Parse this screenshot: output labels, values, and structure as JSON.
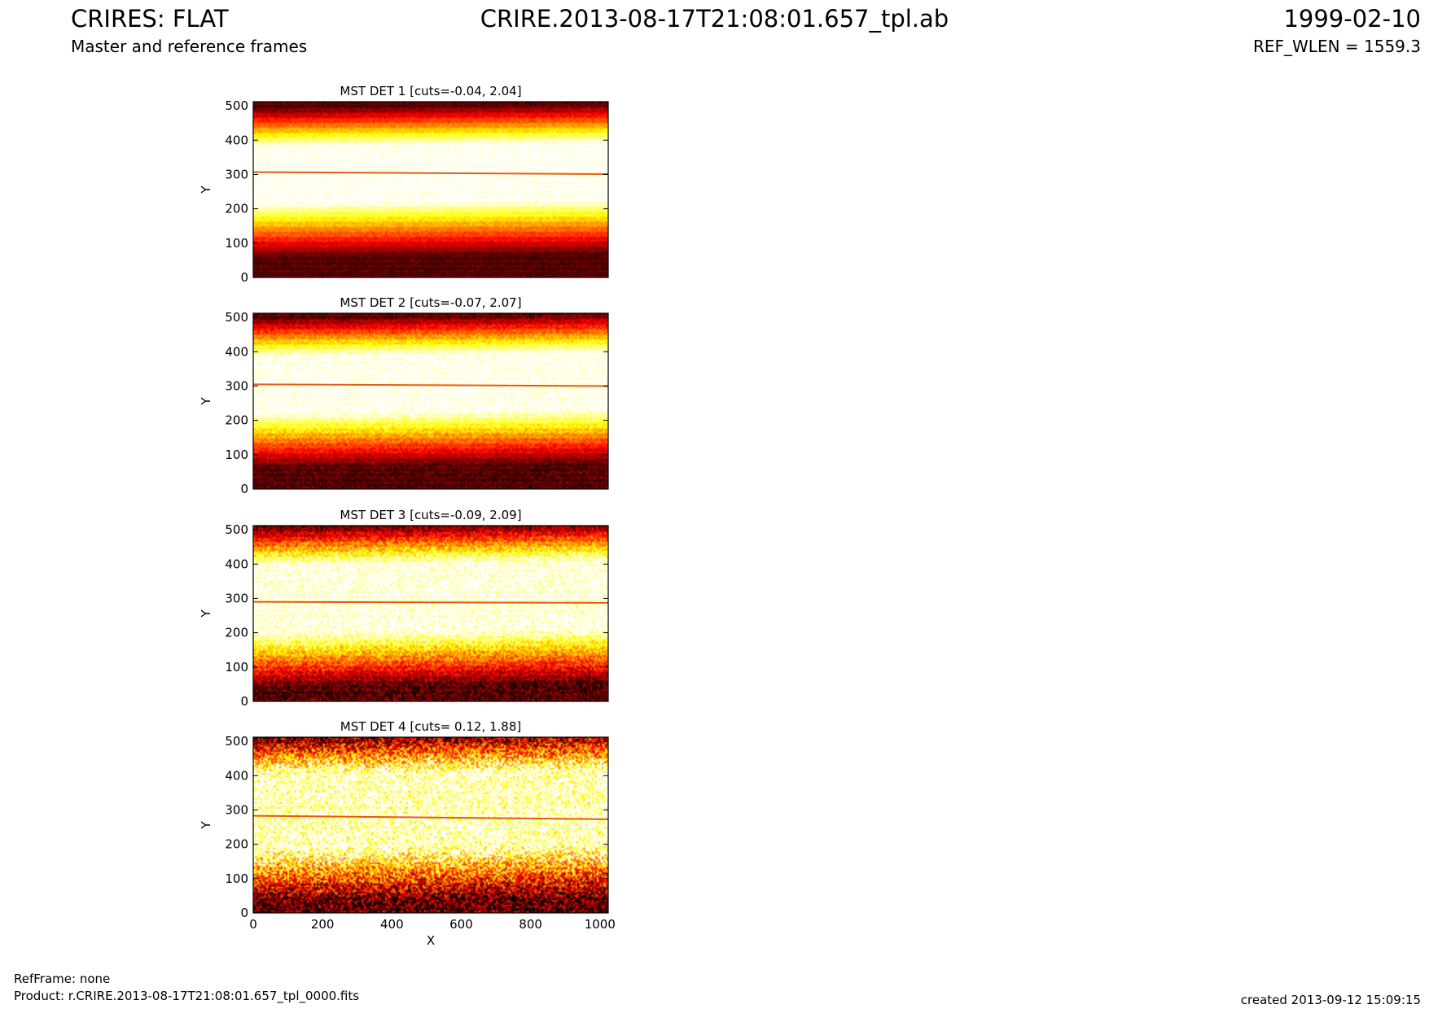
{
  "header": {
    "instrument": "CRIRES: FLAT",
    "subtitle": "Master and reference frames",
    "product_id": "CRIRE.2013-08-17T21:08:01.657_tpl.ab",
    "date": "1999-02-10",
    "ref_wlen": "REF_WLEN = 1559.3"
  },
  "footer": {
    "ref_frame": "RefFrame: none",
    "product": "Product: r.CRIRE.2013-08-17T21:08:01.657_tpl_0000.fits",
    "created": "created 2013-09-12 15:09:15"
  },
  "colors": {
    "colormap": "hot",
    "trace_line": "#e85a12"
  },
  "chart_data": [
    {
      "type": "heatmap",
      "title": "MST DET 1 [cuts=-0.04, 2.04]",
      "xlabel": "",
      "ylabel": "Y",
      "xlim": [
        0,
        1024
      ],
      "ylim": [
        0,
        512
      ],
      "xticks": [],
      "yticks": [
        0,
        100,
        200,
        300,
        400,
        500
      ],
      "cuts": [
        -0.04,
        2.04
      ],
      "bright_band": [
        215,
        380
      ],
      "trace_y_start": 307,
      "trace_y_end": 301,
      "noise": 0.05
    },
    {
      "type": "heatmap",
      "title": "MST DET 2 [cuts=-0.07, 2.07]",
      "xlabel": "",
      "ylabel": "Y",
      "xlim": [
        0,
        1024
      ],
      "ylim": [
        0,
        512
      ],
      "xticks": [],
      "yticks": [
        0,
        100,
        200,
        300,
        400,
        500
      ],
      "cuts": [
        -0.07,
        2.07
      ],
      "bright_band": [
        220,
        385
      ],
      "trace_y_start": 305,
      "trace_y_end": 300,
      "noise": 0.08
    },
    {
      "type": "heatmap",
      "title": "MST DET 3 [cuts=-0.09, 2.09]",
      "xlabel": "",
      "ylabel": "Y",
      "xlim": [
        0,
        1024
      ],
      "ylim": [
        0,
        512
      ],
      "xticks": [],
      "yticks": [
        0,
        100,
        200,
        300,
        400,
        500
      ],
      "cuts": [
        -0.09,
        2.09
      ],
      "bright_band": [
        200,
        395
      ],
      "trace_y_start": 290,
      "trace_y_end": 287,
      "noise": 0.14
    },
    {
      "type": "heatmap",
      "title": "MST DET 4 [cuts= 0.12, 1.88]",
      "xlabel": "X",
      "ylabel": "Y",
      "xlim": [
        0,
        1024
      ],
      "ylim": [
        0,
        512
      ],
      "xticks": [
        0,
        200,
        400,
        600,
        800,
        1000
      ],
      "yticks": [
        0,
        100,
        200,
        300,
        400,
        500
      ],
      "cuts": [
        0.12,
        1.88
      ],
      "bright_band": [
        190,
        400
      ],
      "trace_y_start": 283,
      "trace_y_end": 273,
      "noise": 0.3
    }
  ]
}
